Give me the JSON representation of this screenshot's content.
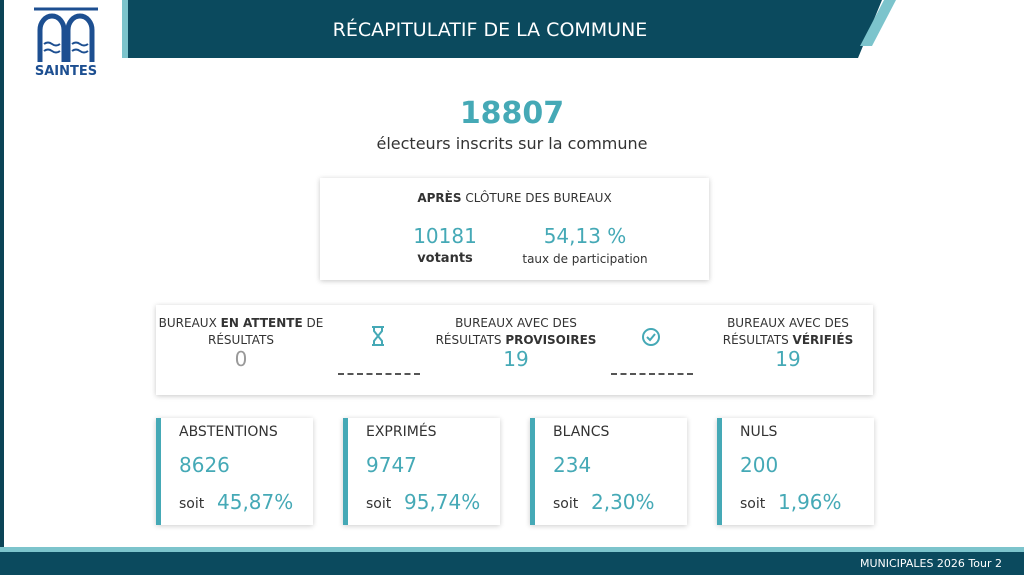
{
  "header": {
    "logo": "SAINTES",
    "title": "RÉCAPITULATIF DE LA COMMUNE"
  },
  "summary": {
    "registered": 18807,
    "registered_label": "électeurs inscrits sur la commune"
  },
  "closing": {
    "title_bold": "APRÈS",
    "title": "CLÔTURE DES BUREAUX",
    "voters": 10181,
    "voters_label": "votants",
    "turnout": "54,13 %",
    "turnout_label": "taux de participation"
  },
  "bureaux": [
    {
      "before": "BUREAUX",
      "bold": "EN ATTENTE",
      "after": "DE RÉSULTATS",
      "value": 0
    },
    {
      "before": "BUREAUX AVEC DES RÉSULTATS",
      "bold": "PROVISOIRES",
      "after": "",
      "value": 19
    },
    {
      "before": "BUREAUX AVEC DES RÉSULTATS",
      "bold": "VÉRIFIÉS",
      "after": "",
      "value": 19
    }
  ],
  "stats": [
    {
      "name": "ABSTENTIONS",
      "value": 8626,
      "prefix": "soit",
      "percent": "45,87%"
    },
    {
      "name": "EXPRIMÉS",
      "value": 9747,
      "prefix": "soit",
      "percent": "95,74%"
    },
    {
      "name": "BLANCS",
      "value": 234,
      "prefix": "soit",
      "percent": "2,30%"
    },
    {
      "name": "NULS",
      "value": 200,
      "prefix": "soit",
      "percent": "1,96%"
    }
  ],
  "footer": {
    "text": "MUNICIPALES 2026 Tour 2"
  }
}
